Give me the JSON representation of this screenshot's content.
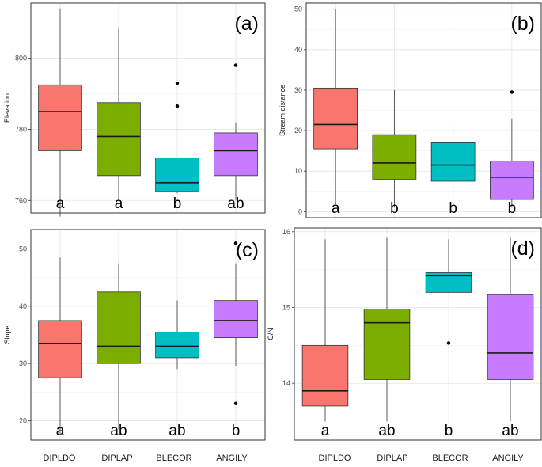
{
  "categories": [
    "DIPLDO",
    "DIPLAP",
    "BLECOR",
    "ANGILY"
  ],
  "colors": {
    "DIPLDO": "#F8766D",
    "DIPLAP": "#7CAE00",
    "BLECOR": "#00BFC4",
    "ANGILY": "#C77CFF"
  },
  "chart_data": [
    {
      "type": "box",
      "panel_tag": "(a)",
      "ylabel": "Elevation",
      "yticks": [
        760,
        780,
        800
      ],
      "ylim": [
        756.5,
        815.5
      ],
      "grid": true,
      "categories": [
        "DIPLDO",
        "DIPLAP",
        "BLECOR",
        "ANGILY"
      ],
      "boxes": [
        {
          "whisker_low": 755.5,
          "q1": 774,
          "median": 785,
          "q3": 792.5,
          "whisker_high": 814,
          "outliers": []
        },
        {
          "whisker_low": 760,
          "q1": 767,
          "median": 778,
          "q3": 787.5,
          "whisker_high": 808.5,
          "outliers": []
        },
        {
          "whisker_low": 762,
          "q1": 762.5,
          "median": 765,
          "q3": 772,
          "whisker_high": 772,
          "outliers": [
            786.5,
            793
          ]
        },
        {
          "whisker_low": 760,
          "q1": 767,
          "median": 774,
          "q3": 779,
          "whisker_high": 782,
          "outliers": [
            798
          ]
        }
      ],
      "group_letters": [
        "a",
        "a",
        "b",
        "ab"
      ]
    },
    {
      "type": "box",
      "panel_tag": "(b)",
      "ylabel": "Stream distance",
      "yticks": [
        0,
        10,
        20,
        30,
        40,
        50
      ],
      "ylim": [
        -1.5,
        51.5
      ],
      "grid": true,
      "categories": [
        "DIPLDO",
        "DIPLAP",
        "BLECOR",
        "ANGILY"
      ],
      "boxes": [
        {
          "whisker_low": 1.5,
          "q1": 15.5,
          "median": 21.5,
          "q3": 30.5,
          "whisker_high": 50,
          "outliers": []
        },
        {
          "whisker_low": 1,
          "q1": 8,
          "median": 12,
          "q3": 19,
          "whisker_high": 30,
          "outliers": []
        },
        {
          "whisker_low": 3,
          "q1": 7.5,
          "median": 11.5,
          "q3": 17,
          "whisker_high": 22,
          "outliers": []
        },
        {
          "whisker_low": 1,
          "q1": 3,
          "median": 8.5,
          "q3": 12.5,
          "whisker_high": 23,
          "outliers": [
            29.5
          ]
        }
      ],
      "group_letters": [
        "a",
        "b",
        "b",
        "b"
      ]
    },
    {
      "type": "box",
      "panel_tag": "(c)",
      "ylabel": "Slope",
      "yticks": [
        20,
        30,
        40,
        50
      ],
      "ylim": [
        16.6,
        53.4
      ],
      "grid": true,
      "categories": [
        "DIPLDO",
        "DIPLAP",
        "BLECOR",
        "ANGILY"
      ],
      "boxes": [
        {
          "whisker_low": 17.5,
          "q1": 27.5,
          "median": 33.5,
          "q3": 37.5,
          "whisker_high": 48.5,
          "outliers": []
        },
        {
          "whisker_low": 18.5,
          "q1": 30,
          "median": 33,
          "q3": 42.5,
          "whisker_high": 47.5,
          "outliers": []
        },
        {
          "whisker_low": 29,
          "q1": 31,
          "median": 33,
          "q3": 35.5,
          "whisker_high": 41,
          "outliers": []
        },
        {
          "whisker_low": 29.5,
          "q1": 34.5,
          "median": 37.5,
          "q3": 41,
          "whisker_high": 47.5,
          "outliers": [
            23,
            51
          ]
        }
      ],
      "group_letters": [
        "a",
        "ab",
        "ab",
        "b"
      ]
    },
    {
      "type": "box",
      "panel_tag": "(d)",
      "ylabel": "C/N",
      "yticks": [
        14,
        15,
        16
      ],
      "ylim": [
        13.25,
        16.05
      ],
      "grid": true,
      "categories": [
        "DIPLDO",
        "DIPLAP",
        "BLECOR",
        "ANGILY"
      ],
      "boxes": [
        {
          "whisker_low": 13.5,
          "q1": 13.7,
          "median": 13.9,
          "q3": 14.5,
          "whisker_high": 15.9,
          "outliers": []
        },
        {
          "whisker_low": 13.5,
          "q1": 14.05,
          "median": 14.8,
          "q3": 14.98,
          "whisker_high": 15.92,
          "outliers": []
        },
        {
          "whisker_low": 15.2,
          "q1": 15.2,
          "median": 15.42,
          "q3": 15.46,
          "whisker_high": 15.9,
          "outliers": [
            14.53
          ]
        },
        {
          "whisker_low": 13.5,
          "q1": 14.05,
          "median": 14.4,
          "q3": 15.17,
          "whisker_high": 15.92,
          "outliers": []
        }
      ],
      "group_letters": [
        "a",
        "ab",
        "b",
        "ab"
      ]
    }
  ]
}
